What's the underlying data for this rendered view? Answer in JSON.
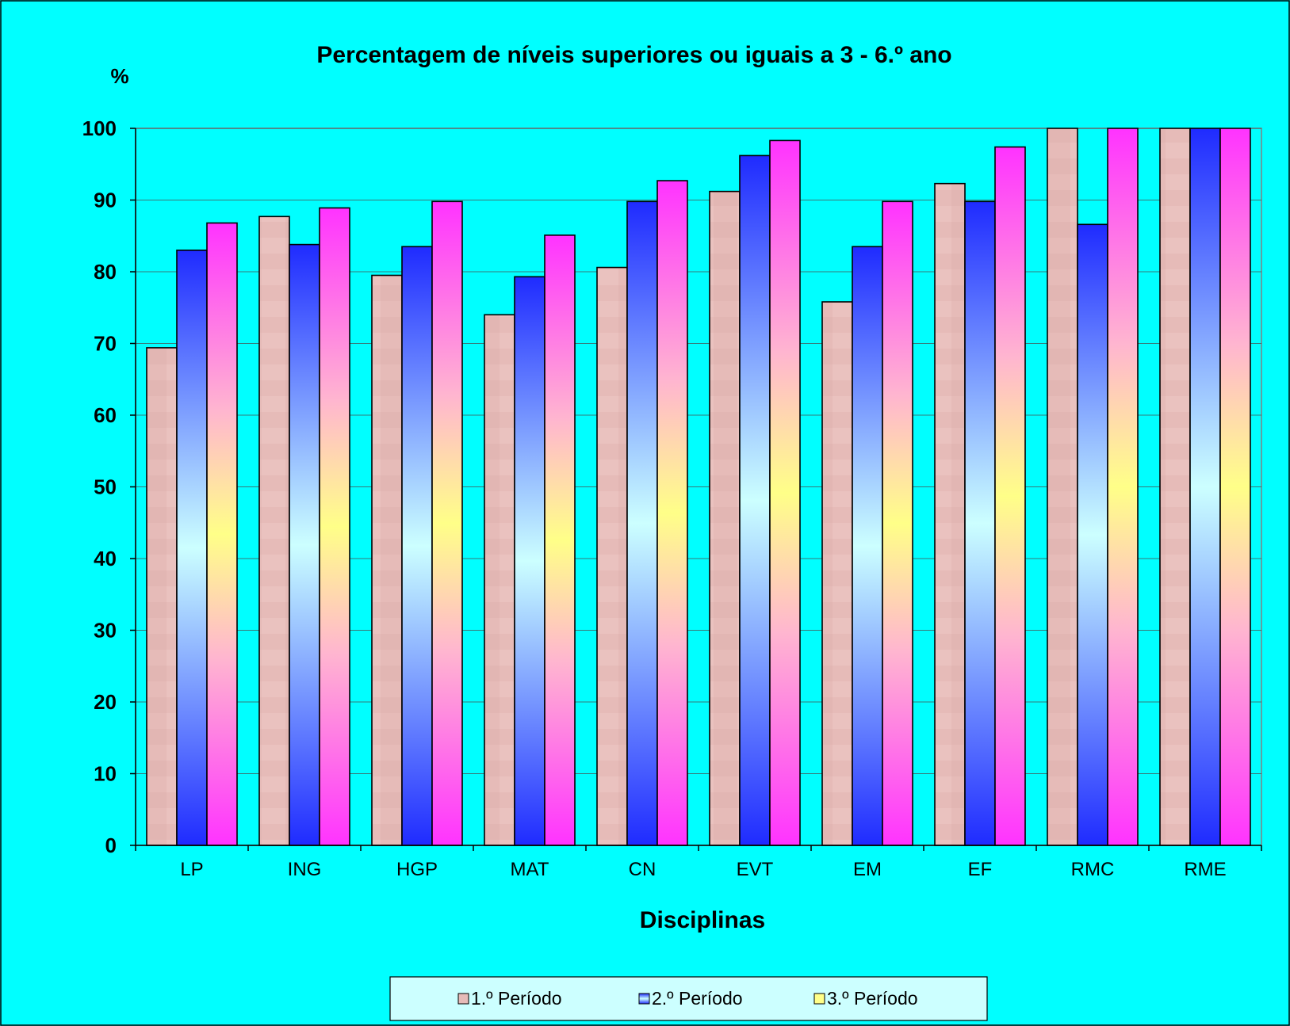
{
  "chart_data": {
    "type": "bar",
    "title": "Percentagem de níveis superiores ou iguais a 3 - 6.º ano",
    "ylabel": "%",
    "xlabel": "Disciplinas",
    "ylim": [
      0,
      100
    ],
    "yticks": [
      0,
      10,
      20,
      30,
      40,
      50,
      60,
      70,
      80,
      90,
      100
    ],
    "grid": true,
    "legend_position": "bottom",
    "categories": [
      "LP",
      "ING",
      "HGP",
      "MAT",
      "CN",
      "EVT",
      "EM",
      "EF",
      "RMC",
      "RME"
    ],
    "series": [
      {
        "name": "1.º Período",
        "color": "#E6BBB8",
        "values": [
          69.4,
          87.7,
          79.5,
          74.0,
          80.6,
          91.2,
          75.8,
          92.3,
          100,
          100
        ]
      },
      {
        "name": "2.º Período",
        "color": "#1F2BFF",
        "values": [
          83.0,
          83.8,
          83.5,
          79.3,
          89.8,
          96.2,
          83.5,
          89.8,
          86.6,
          100
        ]
      },
      {
        "name": "3.º Período",
        "color": "#FF33FF",
        "values": [
          86.8,
          88.9,
          89.8,
          85.1,
          92.7,
          98.3,
          89.8,
          97.4,
          100,
          100
        ]
      }
    ],
    "colors": {
      "background": "#00FFFF",
      "legend_background": "#CCFFFF",
      "series2_gradient": [
        "#1F2BFF",
        "#CCFFFF"
      ],
      "series3_gradient": [
        "#FF33FF",
        "#FFFF88"
      ]
    }
  }
}
